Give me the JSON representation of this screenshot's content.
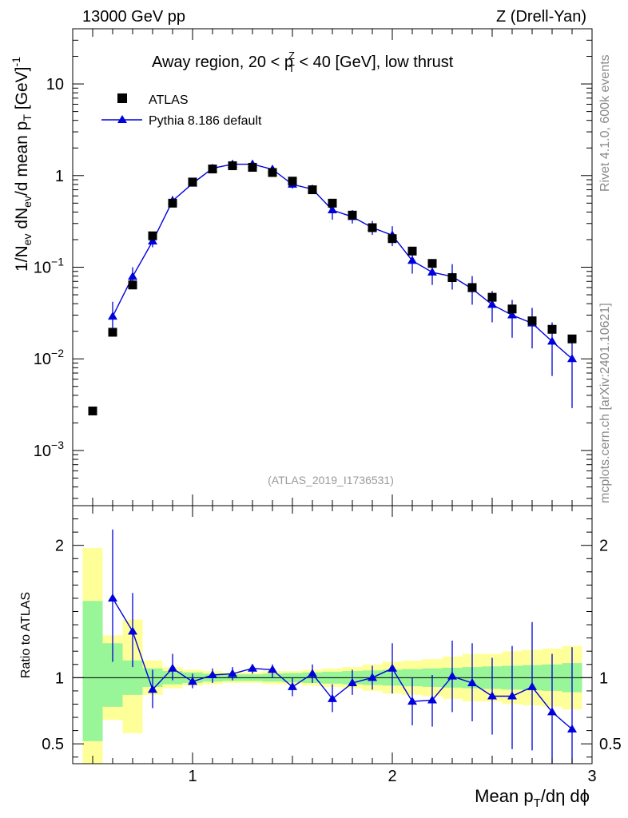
{
  "header": {
    "left": "13000 GeV pp",
    "right": "Z (Drell-Yan)"
  },
  "side_labels": {
    "rivet": "Rivet 4.1.0,  600k events",
    "mcplots": "mcplots.cern.ch [arXiv:2401.10621]"
  },
  "chart_data": [
    {
      "type": "scatter",
      "panel": "main",
      "title_parts": {
        "before": "Away region, 20 < p",
        "sup": "Z",
        "sub": "T",
        "after": " < 40 [GeV], low thrust"
      },
      "ylabel_parts": [
        "1/N",
        "ev",
        " dN",
        "ev",
        "/d mean p",
        "T",
        " [GeV]",
        "-1"
      ],
      "yscale": "log",
      "xlim": [
        0.4,
        3.0
      ],
      "ylim": [
        0.00025,
        40
      ],
      "yticks": [
        {
          "value": 0.001,
          "base": "10",
          "exp": "−3"
        },
        {
          "value": 0.01,
          "base": "10",
          "exp": "−2"
        },
        {
          "value": 0.1,
          "base": "10",
          "exp": "−1"
        },
        {
          "value": 1,
          "label": "1"
        },
        {
          "value": 10,
          "label": "10"
        }
      ],
      "legend": {
        "position": "top-left",
        "entries": [
          "ATLAS",
          "Pythia 8.186 default"
        ]
      },
      "watermark": "(ATLAS_2019_I1736531)",
      "colors": {
        "atlas": "#000000",
        "pythia": "#0000dd"
      },
      "series": [
        {
          "name": "ATLAS",
          "marker": "square",
          "x": [
            0.5,
            0.6,
            0.7,
            0.8,
            0.9,
            1.0,
            1.1,
            1.2,
            1.3,
            1.4,
            1.5,
            1.6,
            1.7,
            1.8,
            1.9,
            2.0,
            2.1,
            2.2,
            2.3,
            2.4,
            2.5,
            2.6,
            2.7,
            2.8,
            2.9
          ],
          "y": [
            0.0027,
            0.0195,
            0.064,
            0.22,
            0.5,
            0.85,
            1.18,
            1.28,
            1.23,
            1.08,
            0.87,
            0.7,
            0.5,
            0.37,
            0.27,
            0.205,
            0.15,
            0.11,
            0.077,
            0.06,
            0.047,
            0.035,
            0.026,
            0.021,
            0.0165
          ]
        },
        {
          "name": "Pythia 8.186 default",
          "marker": "triangle",
          "x": [
            0.6,
            0.7,
            0.8,
            0.9,
            1.0,
            1.1,
            1.2,
            1.3,
            1.4,
            1.5,
            1.6,
            1.7,
            1.8,
            1.9,
            2.0,
            2.1,
            2.2,
            2.3,
            2.4,
            2.5,
            2.6,
            2.7,
            2.8,
            2.9
          ],
          "y": [
            0.029,
            0.079,
            0.192,
            0.53,
            0.82,
            1.2,
            1.33,
            1.33,
            1.17,
            0.8,
            0.71,
            0.42,
            0.355,
            0.27,
            0.223,
            0.118,
            0.088,
            0.079,
            0.058,
            0.039,
            0.03,
            0.0245,
            0.0155,
            0.01
          ],
          "y_low": [
            0.02,
            0.062,
            0.165,
            0.47,
            0.76,
            1.12,
            1.24,
            1.25,
            1.08,
            0.72,
            0.63,
            0.33,
            0.3,
            0.225,
            0.17,
            0.085,
            0.064,
            0.057,
            0.039,
            0.025,
            0.017,
            0.013,
            0.0065,
            0.0029
          ],
          "y_high": [
            0.042,
            0.1,
            0.225,
            0.6,
            0.88,
            1.28,
            1.42,
            1.41,
            1.26,
            0.88,
            0.79,
            0.52,
            0.42,
            0.32,
            0.28,
            0.158,
            0.118,
            0.108,
            0.08,
            0.055,
            0.044,
            0.036,
            0.025,
            0.018
          ]
        }
      ]
    },
    {
      "type": "scatter",
      "panel": "ratio",
      "ylabel": "Ratio to ATLAS",
      "xlabel_parts": [
        "Mean p",
        "T",
        "/dη dϕ"
      ],
      "xlim": [
        0.4,
        3.0
      ],
      "ylim": [
        0.35,
        2.3
      ],
      "xticks": [
        {
          "value": 1,
          "label": "1"
        },
        {
          "value": 2,
          "label": "2"
        },
        {
          "value": 3,
          "label": "3"
        }
      ],
      "yticks": [
        {
          "value": 0.5,
          "label": "0.5"
        },
        {
          "value": 1,
          "label": "1"
        },
        {
          "value": 2,
          "label": "2"
        }
      ],
      "reference_line": 1.0,
      "colors": {
        "band_inner": "#98f598",
        "band_outer": "#ffff9a",
        "pythia": "#0000dd"
      },
      "bands": {
        "edges": [
          0.45,
          0.55,
          0.65,
          0.75,
          0.85,
          0.95,
          1.05,
          1.15,
          1.25,
          1.35,
          1.45,
          1.55,
          1.65,
          1.75,
          1.85,
          1.95,
          2.05,
          2.15,
          2.25,
          2.35,
          2.45,
          2.55,
          2.65,
          2.75,
          2.85,
          2.95
        ],
        "inner_low": [
          0.52,
          0.78,
          0.87,
          0.93,
          0.95,
          0.96,
          0.97,
          0.975,
          0.975,
          0.97,
          0.965,
          0.96,
          0.955,
          0.95,
          0.945,
          0.94,
          0.935,
          0.93,
          0.925,
          0.92,
          0.915,
          0.91,
          0.905,
          0.9,
          0.89
        ],
        "inner_high": [
          1.58,
          1.26,
          1.13,
          1.07,
          1.05,
          1.04,
          1.03,
          1.025,
          1.025,
          1.03,
          1.035,
          1.04,
          1.045,
          1.05,
          1.055,
          1.06,
          1.065,
          1.07,
          1.075,
          1.08,
          1.085,
          1.09,
          1.095,
          1.1,
          1.11
        ],
        "outer_low": [
          0.32,
          0.68,
          0.58,
          0.87,
          0.92,
          0.94,
          0.95,
          0.96,
          0.96,
          0.95,
          0.95,
          0.94,
          0.93,
          0.92,
          0.9,
          0.88,
          0.87,
          0.86,
          0.84,
          0.82,
          0.82,
          0.8,
          0.79,
          0.78,
          0.76
        ],
        "outer_high": [
          1.98,
          1.32,
          1.44,
          1.13,
          1.08,
          1.06,
          1.05,
          1.04,
          1.04,
          1.05,
          1.05,
          1.06,
          1.07,
          1.08,
          1.1,
          1.12,
          1.13,
          1.14,
          1.16,
          1.18,
          1.18,
          1.2,
          1.21,
          1.22,
          1.24
        ]
      },
      "series": [
        {
          "name": "Pythia 8.186 default / ATLAS",
          "marker": "triangle",
          "x": [
            0.6,
            0.7,
            0.8,
            0.9,
            1.0,
            1.1,
            1.2,
            1.3,
            1.4,
            1.5,
            1.6,
            1.7,
            1.8,
            1.9,
            2.0,
            2.1,
            2.2,
            2.3,
            2.4,
            2.5,
            2.6,
            2.7,
            2.8,
            2.9
          ],
          "y": [
            1.6,
            1.35,
            0.91,
            1.07,
            0.97,
            1.02,
            1.03,
            1.07,
            1.06,
            0.93,
            1.03,
            0.84,
            0.96,
            1.0,
            1.07,
            0.82,
            0.83,
            1.01,
            0.96,
            0.86,
            0.86,
            0.93,
            0.74,
            0.61
          ],
          "y_low": [
            1.12,
            1.08,
            0.77,
            0.98,
            0.92,
            0.96,
            0.98,
            1.03,
            1.0,
            0.86,
            0.96,
            0.74,
            0.87,
            0.91,
            0.88,
            0.64,
            0.63,
            0.74,
            0.67,
            0.57,
            0.46,
            0.45,
            0.35,
            0.35
          ],
          "y_high": [
            2.12,
            1.64,
            1.06,
            1.18,
            1.03,
            1.07,
            1.08,
            1.1,
            1.1,
            1.0,
            1.1,
            0.95,
            1.06,
            1.09,
            1.26,
            1.0,
            1.02,
            1.28,
            1.26,
            1.15,
            1.24,
            1.42,
            1.18,
            1.23
          ]
        }
      ]
    }
  ]
}
